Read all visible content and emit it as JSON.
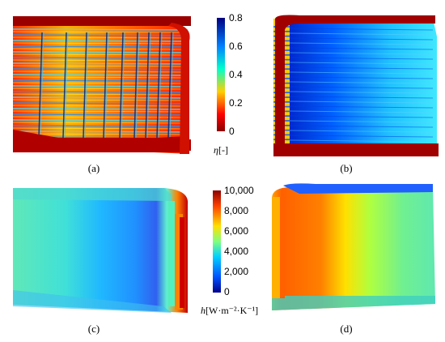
{
  "panels": {
    "a": {
      "caption": "(a)"
    },
    "b": {
      "caption": "(b)"
    },
    "c": {
      "caption": "(c)"
    },
    "d": {
      "caption": "(d)"
    }
  },
  "colorbar_eta": {
    "symbol": "η",
    "unit": "[-]",
    "ticks": [
      "0.8",
      "0.6",
      "0.4",
      "0.2",
      "0"
    ],
    "range": [
      0,
      0.8
    ],
    "colors": [
      "#8b0000",
      "#ff0000",
      "#ffd000",
      "#00ffcc",
      "#0080ff",
      "#000080"
    ]
  },
  "colorbar_h": {
    "symbol": "h",
    "unit": "[W·m⁻²·K⁻¹]",
    "ticks": [
      "10,000",
      "8,000",
      "6,000",
      "4,000",
      "2,000",
      "0"
    ],
    "range": [
      0,
      10000
    ],
    "colors": [
      "#00008b",
      "#0050ff",
      "#00d0ff",
      "#80ff80",
      "#ffe000",
      "#ff6000",
      "#8b0000"
    ]
  }
}
